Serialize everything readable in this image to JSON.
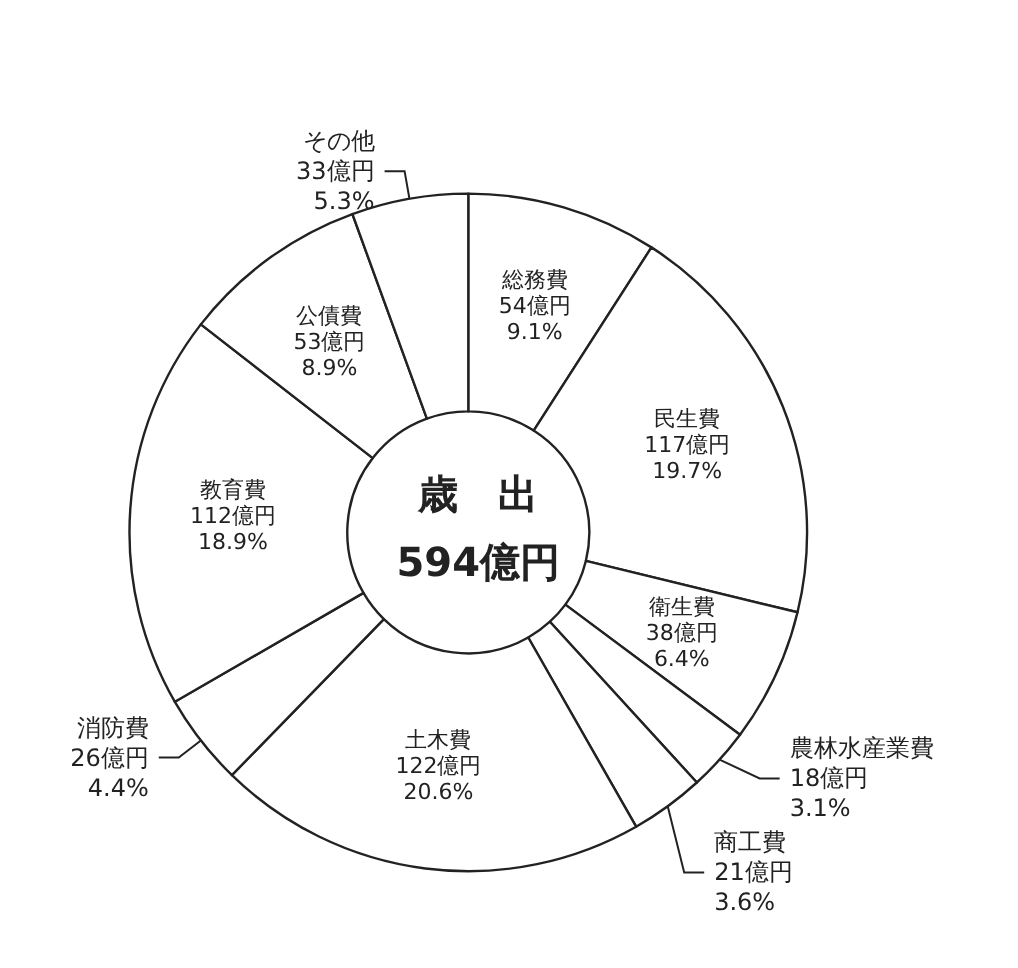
{
  "chart_data": {
    "type": "donut",
    "title": "歳　出",
    "subtitle": "594億円",
    "categories": [
      "総務費",
      "民生費",
      "衛生費",
      "農林水産業費",
      "商工費",
      "土木費",
      "消防費",
      "教育費",
      "公債費",
      "その他"
    ],
    "values": [
      54,
      117,
      38,
      18,
      21,
      122,
      26,
      112,
      53,
      33
    ],
    "value_labels": [
      "54億円\n9.1%",
      "117億円\n19.7%",
      "38億円\n6.4%",
      "18億円\n3.1%",
      "21億円\n3.6%",
      "122億円\n20.6%",
      "26億円\n4.4%",
      "112億円\n18.9%",
      "53億円\n8.9%",
      "33億円\n5.3%"
    ],
    "colors": [
      "#ffffff",
      "#ffffff",
      "#ffffff",
      "#ffffff",
      "#ffffff",
      "#ffffff",
      "#ffffff",
      "#ffffff",
      "#ffffff",
      "#ffffff"
    ],
    "legend": false
  }
}
